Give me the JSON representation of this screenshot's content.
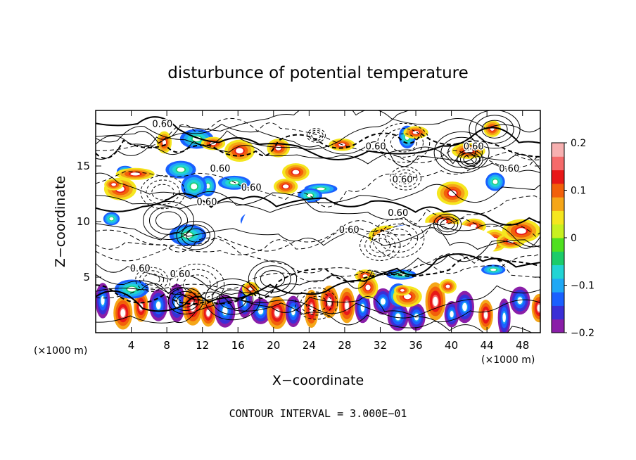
{
  "chart_data": {
    "type": "heatmap",
    "title": "disturbunce of potential temperature",
    "xlabel": "X−coordinate",
    "ylabel": "Z−coordinate",
    "x_unit": "(×1000 m)",
    "y_unit": "(×1000 m)",
    "xlim": [
      0,
      50
    ],
    "ylim": [
      0,
      20
    ],
    "x_ticks": [
      "4",
      "8",
      "12",
      "16",
      "20",
      "24",
      "28",
      "32",
      "36",
      "40",
      "44",
      "48"
    ],
    "y_ticks": [
      "5",
      "10",
      "15"
    ],
    "footer": "CONTOUR INTERVAL = 3.000E−01",
    "colorbar": {
      "ticks": [
        "0.2",
        "0.1",
        "0",
        "−0.1",
        "−0.2"
      ],
      "min": -0.2,
      "max": 0.2,
      "colors": [
        "#8a1ea8",
        "#3a2fd6",
        "#1a60ff",
        "#1fa8f5",
        "#22d4d4",
        "#1ccc6a",
        "#4fe020",
        "#c8f020",
        "#f5e61e",
        "#f5a618",
        "#f2600a",
        "#e81818",
        "#f56a6a",
        "#f7b0b0"
      ]
    },
    "contour_labels": [
      {
        "text": "0.60",
        "x": 7.5,
        "y": 18.5
      },
      {
        "text": "0.60",
        "x": 31.5,
        "y": 16.5
      },
      {
        "text": "0.60",
        "x": 42.5,
        "y": 16.5
      },
      {
        "text": "0.60",
        "x": 34.5,
        "y": 13.5
      },
      {
        "text": "0.60",
        "x": 14.0,
        "y": 14.5
      },
      {
        "text": "0.60",
        "x": 17.5,
        "y": 12.8
      },
      {
        "text": "0.60",
        "x": 12.5,
        "y": 11.5
      },
      {
        "text": "0.60",
        "x": 34.0,
        "y": 10.5
      },
      {
        "text": "0.60",
        "x": 28.5,
        "y": 9.0
      },
      {
        "text": "0.60",
        "x": 46.5,
        "y": 14.5
      },
      {
        "text": "0.60",
        "x": 5.0,
        "y": 5.5
      },
      {
        "text": "0.60",
        "x": 9.5,
        "y": 5.0
      }
    ]
  }
}
